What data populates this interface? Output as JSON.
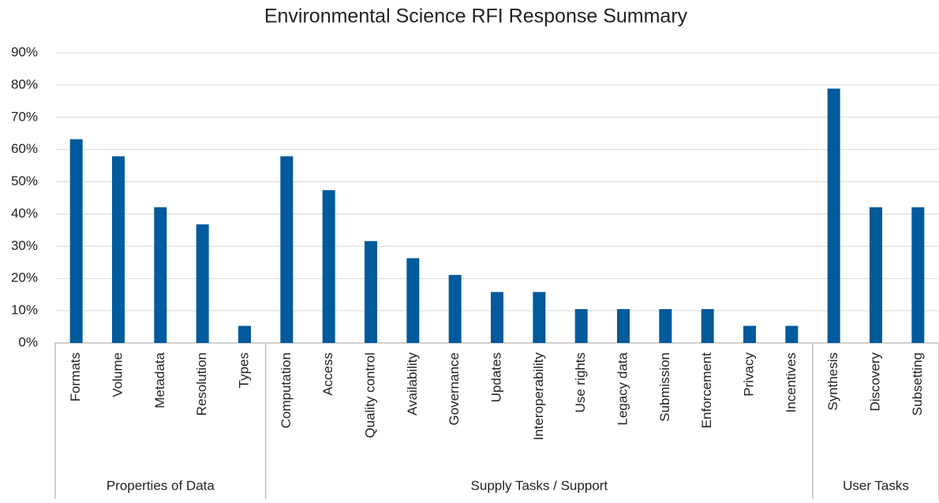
{
  "chart_data": {
    "type": "bar",
    "title": "Environmental Science RFI Response Summary",
    "color": "#005a9c",
    "grid": true,
    "ylim": [
      0,
      90
    ],
    "yticks": [
      {
        "value": 0,
        "label": "0%"
      },
      {
        "value": 10,
        "label": "10%"
      },
      {
        "value": 20,
        "label": "20%"
      },
      {
        "value": 30,
        "label": "30%"
      },
      {
        "value": 40,
        "label": "40%"
      },
      {
        "value": 50,
        "label": "50%"
      },
      {
        "value": 60,
        "label": "60%"
      },
      {
        "value": 70,
        "label": "70%"
      },
      {
        "value": 80,
        "label": "80%"
      },
      {
        "value": 90,
        "label": "90%"
      }
    ],
    "groups": [
      {
        "name": "Properties of Data",
        "categories": [
          "Formats",
          "Volume",
          "Metadata",
          "Resolution",
          "Types"
        ],
        "values": [
          63.2,
          57.9,
          42.1,
          36.8,
          5.3
        ]
      },
      {
        "name": "Supply Tasks / Support",
        "categories": [
          "Computation",
          "Access",
          "Quality control",
          "Availability",
          "Governance",
          "Updates",
          "Interoperability",
          "Use rights",
          "Legacy data",
          "Submission",
          "Enforcement",
          "Privacy",
          "Incentives"
        ],
        "values": [
          57.9,
          47.4,
          31.6,
          26.3,
          21.1,
          15.8,
          15.8,
          10.5,
          10.5,
          10.5,
          10.5,
          5.3,
          5.3
        ]
      },
      {
        "name": "User Tasks",
        "categories": [
          "Synthesis",
          "Discovery",
          "Subsetting"
        ],
        "values": [
          78.9,
          42.1,
          42.1
        ]
      }
    ]
  }
}
